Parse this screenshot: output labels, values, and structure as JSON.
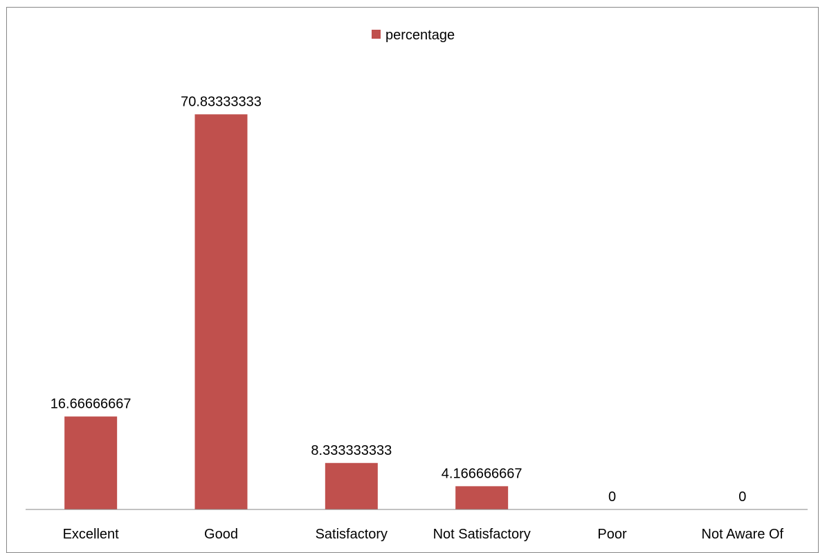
{
  "chart_data": {
    "type": "bar",
    "categories": [
      "Excellent",
      "Good",
      "Satisfactory",
      "Not Satisfactory",
      "Poor",
      "Not Aware Of"
    ],
    "series": [
      {
        "name": "percentage",
        "values": [
          16.66666667,
          70.83333333,
          8.333333333,
          4.166666667,
          0,
          0
        ],
        "labels": [
          "16.66666667",
          "70.83333333",
          "8.333333333",
          "4.166666667",
          "0",
          "0"
        ],
        "color": "#C0504D"
      }
    ],
    "title": "",
    "xlabel": "",
    "ylabel": "",
    "ylim": [
      0,
      80
    ],
    "grid": false,
    "y_axis_visible": false,
    "legend_position": "top"
  }
}
